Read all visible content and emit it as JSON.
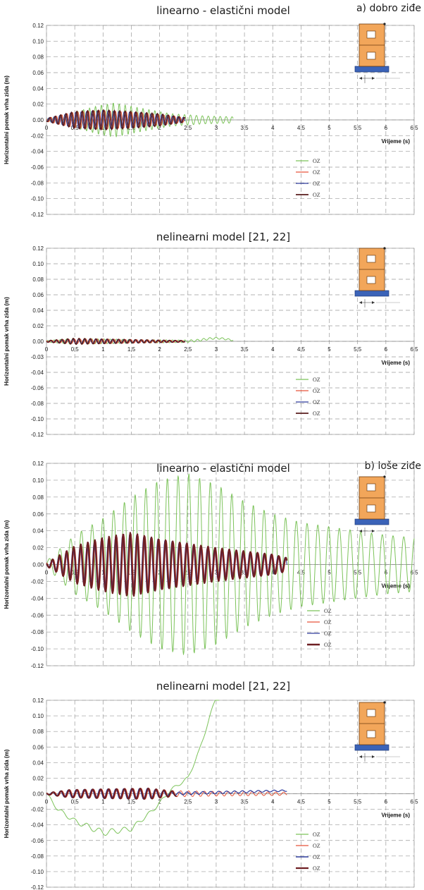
{
  "chart_data": [
    {
      "type": "line",
      "title": "linearno - elastični model",
      "corner_label": "a) dobro ziđe",
      "ylabel": "Horizontalni pomak vrha zida (m)",
      "xlabel": "Vrijeme (s)",
      "xlim": [
        0,
        6.5
      ],
      "ylim": [
        -0.12,
        0.12
      ],
      "x_ticks": [
        "0",
        "0,5",
        "1",
        "1,5",
        "2",
        "2,5",
        "3",
        "3,5",
        "4",
        "4,5",
        "5",
        "5,5",
        "6",
        "6,5"
      ],
      "y_ticks": [
        "0.12",
        "0.10",
        "0.08",
        "0.06",
        "0.04",
        "0.02",
        "0.00",
        "-0.02",
        "-0.04",
        "-0.06",
        "-0.08",
        "-0.10",
        "-0.12"
      ],
      "legend": [
        "OZ",
        "OZ",
        "OZ",
        "OZ"
      ],
      "series": [
        {
          "color": "#7cc35a",
          "width": 1.0,
          "t_end": 3.3,
          "period": 0.105,
          "phase": 0.0,
          "env": [
            [
              0,
              0.001
            ],
            [
              0.4,
              0.008
            ],
            [
              0.9,
              0.018
            ],
            [
              1.2,
              0.022
            ],
            [
              1.6,
              0.016
            ],
            [
              2.2,
              0.008
            ],
            [
              2.8,
              0.005
            ],
            [
              3.3,
              0.004
            ]
          ]
        },
        {
          "color": "#e8553a",
          "width": 1.0,
          "t_end": 2.45,
          "period": 0.095,
          "phase": 0.4,
          "env": [
            [
              0,
              0.002
            ],
            [
              0.5,
              0.01
            ],
            [
              1.0,
              0.012
            ],
            [
              1.5,
              0.01
            ],
            [
              2.0,
              0.007
            ],
            [
              2.45,
              0.003
            ]
          ]
        },
        {
          "color": "#2d3b9c",
          "width": 1.0,
          "t_end": 2.45,
          "period": 0.095,
          "phase": 0.8,
          "env": [
            [
              0,
              0.002
            ],
            [
              0.5,
              0.01
            ],
            [
              1.0,
              0.012
            ],
            [
              1.5,
              0.01
            ],
            [
              2.0,
              0.007
            ],
            [
              2.45,
              0.003
            ]
          ]
        },
        {
          "color": "#5a1d1d",
          "width": 1.5,
          "t_end": 2.45,
          "period": 0.095,
          "phase": 0.6,
          "env": [
            [
              0,
              0.002
            ],
            [
              0.5,
              0.011
            ],
            [
              1.0,
              0.013
            ],
            [
              1.5,
              0.011
            ],
            [
              2.0,
              0.008
            ],
            [
              2.45,
              0.003
            ]
          ]
        }
      ]
    },
    {
      "type": "line",
      "title": "nelinearni model [21, 22]",
      "corner_label": "",
      "ylabel": "Horizontalni pomak vrha zida (m)",
      "xlabel": "Vrijeme (s)",
      "xlim": [
        0,
        6.5
      ],
      "ylim": [
        -0.12,
        0.12
      ],
      "x_ticks": [
        "0",
        "0,5",
        "1",
        "1,5",
        "2",
        "2,5",
        "3",
        "3,5",
        "4",
        "4,5",
        "5",
        "5,5",
        "6",
        "6,5"
      ],
      "y_ticks": [
        "0.12",
        "0.10",
        "0.08",
        "0.06",
        "0.04",
        "0.02",
        "0.00",
        "-0.03",
        "-0.04",
        "-0.06",
        "-0.08",
        "-0.10",
        "-0.12"
      ],
      "legend": [
        "OZ",
        "OZ",
        "OZ",
        "OZ"
      ],
      "series": [
        {
          "color": "#7cc35a",
          "width": 1.0,
          "t_end": 3.3,
          "period": 0.11,
          "phase": 0.0,
          "env": [
            [
              0,
              0.001
            ],
            [
              0.5,
              0.004
            ],
            [
              1.0,
              0.003
            ],
            [
              2.0,
              0.002
            ],
            [
              3.3,
              0.001
            ]
          ],
          "bumps": [
            [
              3.0,
              0.004,
              0.3
            ]
          ]
        },
        {
          "color": "#e8553a",
          "width": 1.0,
          "t_end": 2.45,
          "period": 0.1,
          "phase": 0.3,
          "env": [
            [
              0,
              0.001
            ],
            [
              0.5,
              0.003
            ],
            [
              1.0,
              0.003
            ],
            [
              2.45,
              0.001
            ]
          ]
        },
        {
          "color": "#2d3b9c",
          "width": 1.0,
          "t_end": 2.45,
          "period": 0.1,
          "phase": 0.6,
          "env": [
            [
              0,
              0.001
            ],
            [
              0.5,
              0.003
            ],
            [
              1.0,
              0.003
            ],
            [
              2.45,
              0.001
            ]
          ]
        },
        {
          "color": "#5a1d1d",
          "width": 1.5,
          "t_end": 2.45,
          "period": 0.1,
          "phase": 0.5,
          "env": [
            [
              0,
              0.001
            ],
            [
              0.5,
              0.004
            ],
            [
              1.0,
              0.003
            ],
            [
              2.45,
              0.001
            ]
          ]
        }
      ]
    },
    {
      "type": "line",
      "title": "linearno - elastični model",
      "corner_label": "b) loše ziđe",
      "ylabel": "Horizontalni pomak vrha zida (m)",
      "xlabel": "Vrijeme (s)",
      "xlim": [
        0,
        6.5
      ],
      "ylim": [
        -0.12,
        0.12
      ],
      "x_ticks": [
        "0",
        "0,5",
        "1",
        "1,5",
        "2",
        "2,5",
        "3",
        "3,5",
        "4",
        "4,5",
        "5",
        "5,5",
        "6",
        "6,5"
      ],
      "y_ticks": [
        "0.12",
        "0.10",
        "0.08",
        "0.06",
        "0.04",
        "0.02",
        "0.00",
        "-0.02",
        "-0.04",
        "-0.06",
        "-0.08",
        "-0.10",
        "-0.12"
      ],
      "legend": [
        "OZ",
        "OZ",
        "OZ",
        "OZ"
      ],
      "series": [
        {
          "color": "#7cc35a",
          "width": 1.0,
          "t_end": 6.5,
          "period": 0.19,
          "phase": 0.0,
          "env": [
            [
              0,
              0.004
            ],
            [
              0.5,
              0.035
            ],
            [
              1.0,
              0.055
            ],
            [
              1.5,
              0.08
            ],
            [
              2.0,
              0.1
            ],
            [
              2.5,
              0.108
            ],
            [
              3.0,
              0.095
            ],
            [
              3.5,
              0.075
            ],
            [
              4.0,
              0.06
            ],
            [
              4.5,
              0.05
            ],
            [
              5.0,
              0.045
            ],
            [
              5.5,
              0.04
            ],
            [
              6.0,
              0.035
            ],
            [
              6.5,
              0.032
            ]
          ]
        },
        {
          "color": "#e8553a",
          "width": 1.0,
          "t_end": 4.25,
          "period": 0.125,
          "phase": 0.3,
          "env": [
            [
              0,
              0.002
            ],
            [
              0.5,
              0.02
            ],
            [
              1.0,
              0.03
            ],
            [
              1.5,
              0.036
            ],
            [
              2.0,
              0.03
            ],
            [
              3.0,
              0.018
            ],
            [
              4.0,
              0.012
            ],
            [
              4.25,
              0.008
            ]
          ]
        },
        {
          "color": "#2d3b9c",
          "width": 1.0,
          "t_end": 4.25,
          "period": 0.125,
          "phase": 0.5,
          "env": [
            [
              0,
              0.002
            ],
            [
              0.5,
              0.02
            ],
            [
              1.0,
              0.03
            ],
            [
              1.5,
              0.036
            ],
            [
              2.0,
              0.03
            ],
            [
              3.0,
              0.018
            ],
            [
              4.0,
              0.012
            ],
            [
              4.25,
              0.008
            ]
          ]
        },
        {
          "color": "#6e1f23",
          "width": 2.2,
          "t_end": 4.25,
          "period": 0.125,
          "phase": 0.4,
          "env": [
            [
              0,
              0.002
            ],
            [
              0.5,
              0.022
            ],
            [
              1.0,
              0.032
            ],
            [
              1.5,
              0.038
            ],
            [
              2.0,
              0.03
            ],
            [
              3.0,
              0.02
            ],
            [
              4.0,
              0.012
            ],
            [
              4.25,
              0.008
            ]
          ]
        }
      ]
    },
    {
      "type": "line",
      "title": "nelinearni model [21, 22]",
      "corner_label": "",
      "ylabel": "Horizontalni pomak vrha zida (m)",
      "xlabel": "Vrijeme (s)",
      "xlim": [
        0,
        6.5
      ],
      "ylim": [
        -0.12,
        0.12
      ],
      "x_ticks": [
        "0",
        "0,5",
        "1",
        "1,5",
        "2",
        "2,5",
        "3",
        "3,5",
        "4",
        "4,5",
        "5",
        "5,5",
        "6",
        "6,5"
      ],
      "y_ticks": [
        "0.12",
        "0.10",
        "0.08",
        "0.06",
        "0.04",
        "0.02",
        "0.00",
        "-0.02",
        "-0.04",
        "-0.06",
        "-0.08",
        "-0.10",
        "-0.12"
      ],
      "legend": [
        "OZ",
        "OZ",
        "OZ",
        "OZ"
      ],
      "series": [
        {
          "color": "#7cc35a",
          "width": 1.0,
          "t_end": 3.05,
          "period": 0.22,
          "phase": 0.0,
          "env": [
            [
              0,
              0.002
            ],
            [
              1.0,
              0.004
            ],
            [
              2.0,
              0.002
            ],
            [
              3.0,
              0.002
            ]
          ],
          "trend": [
            [
              0,
              0
            ],
            [
              0.2,
              -0.02
            ],
            [
              0.5,
              -0.035
            ],
            [
              1.0,
              -0.05
            ],
            [
              1.5,
              -0.045
            ],
            [
              1.9,
              -0.02
            ],
            [
              2.2,
              0.005
            ],
            [
              2.5,
              0.02
            ],
            [
              2.7,
              0.055
            ],
            [
              3.0,
              0.125
            ]
          ]
        },
        {
          "color": "#e8553a",
          "width": 1.0,
          "t_end": 4.25,
          "period": 0.14,
          "phase": 0.3,
          "env": [
            [
              0,
              0.001
            ],
            [
              0.4,
              0.005
            ],
            [
              1.0,
              0.006
            ],
            [
              1.8,
              0.007
            ],
            [
              2.2,
              0.004
            ],
            [
              3.0,
              0.003
            ],
            [
              4.25,
              0.002
            ]
          ]
        },
        {
          "color": "#2d3b9c",
          "width": 1.2,
          "t_end": 4.25,
          "period": 0.14,
          "phase": 0.5,
          "env": [
            [
              0,
              0.001
            ],
            [
              0.4,
              0.005
            ],
            [
              1.0,
              0.006
            ],
            [
              1.8,
              0.007
            ],
            [
              2.2,
              0.002
            ],
            [
              4.25,
              0.001
            ]
          ],
          "trend": [
            [
              0,
              0
            ],
            [
              2.2,
              0
            ],
            [
              4.25,
              0.004
            ]
          ]
        },
        {
          "color": "#6e1f23",
          "width": 2.0,
          "t_end": 2.3,
          "period": 0.14,
          "phase": 0.4,
          "env": [
            [
              0,
              0.001
            ],
            [
              0.4,
              0.005
            ],
            [
              1.0,
              0.006
            ],
            [
              1.8,
              0.007
            ],
            [
              2.3,
              0.003
            ]
          ]
        }
      ]
    }
  ]
}
